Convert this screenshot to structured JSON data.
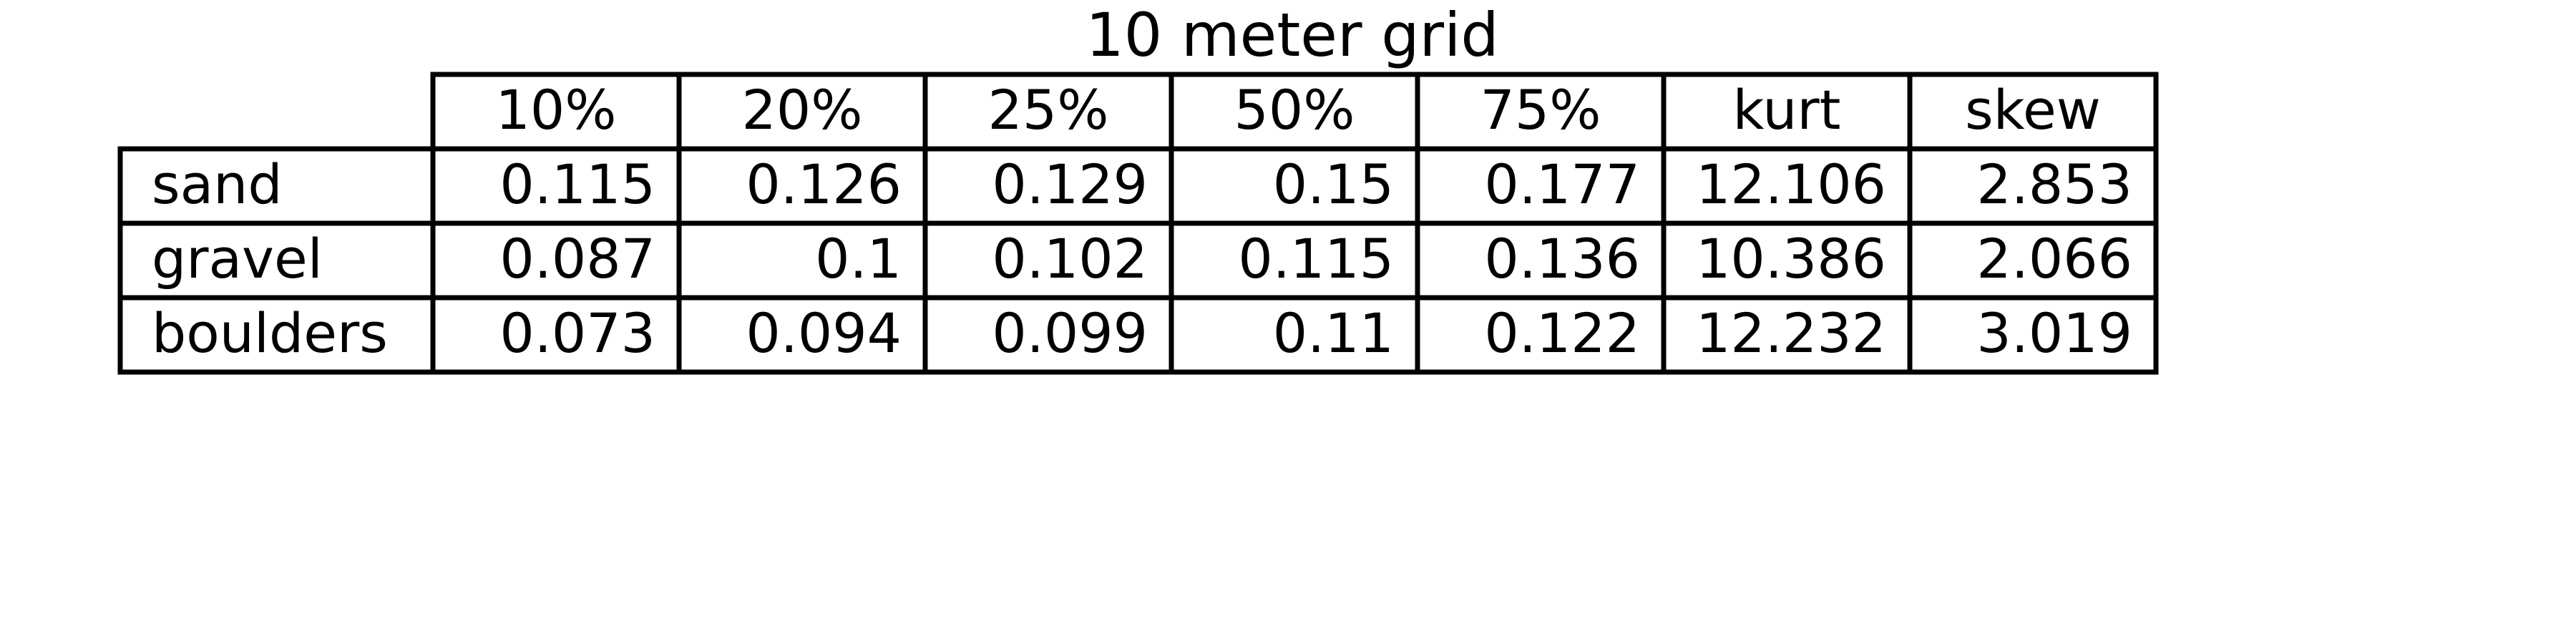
{
  "chart_data": {
    "type": "table",
    "title": "10 meter grid",
    "columns": [
      "10%",
      "20%",
      "25%",
      "50%",
      "75%",
      "kurt",
      "skew"
    ],
    "rows": [
      {
        "label": "sand",
        "values": [
          "0.115",
          "0.126",
          "0.129",
          "0.15",
          "0.177",
          "12.106",
          "2.853"
        ]
      },
      {
        "label": "gravel",
        "values": [
          "0.087",
          "0.1",
          "0.102",
          "0.115",
          "0.136",
          "10.386",
          "2.066"
        ]
      },
      {
        "label": "boulders",
        "values": [
          "0.073",
          "0.094",
          "0.099",
          "0.11",
          "0.122",
          "12.232",
          "3.019"
        ]
      }
    ],
    "grid": true,
    "legend": "none"
  }
}
